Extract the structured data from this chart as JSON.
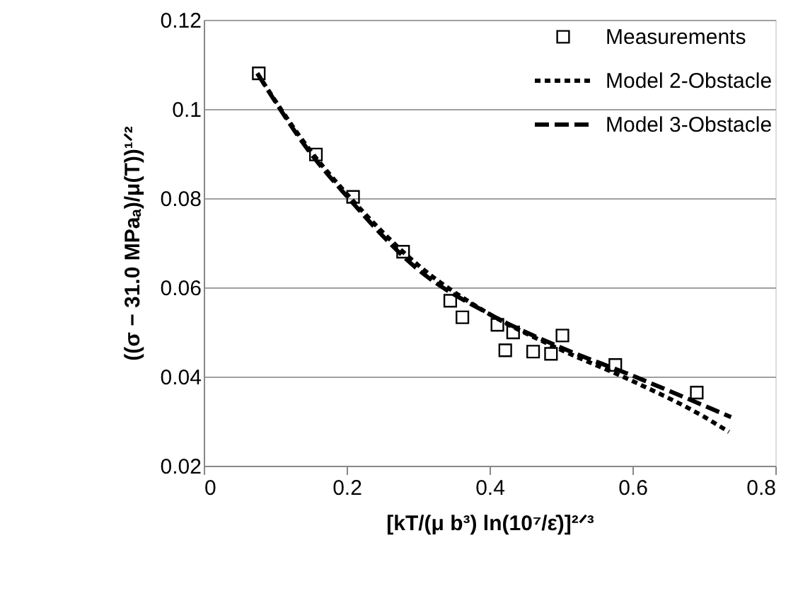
{
  "chart_data": {
    "type": "scatter",
    "xlabel": "[kT/(μ b³) ln(10⁷/ε̇)]²ᐟ³",
    "ylabel": "((σ − 31.0 MPaₐ)/μ(T))¹ᐟ²",
    "xlim": [
      0,
      0.8
    ],
    "xticks": [
      {
        "value": 0,
        "label": "0"
      },
      0.2,
      0.4,
      0.6,
      0.8
    ],
    "ylim": [
      0.02,
      0.12
    ],
    "yticks": [
      0.02,
      0.04,
      0.06,
      0.08,
      {
        "value": 0.1,
        "label": "0.1"
      },
      0.12
    ],
    "grid": "y",
    "legend": "top right",
    "series": [
      {
        "name": "Measurements",
        "marker": "square",
        "color": "#000000",
        "x": [
          0.077,
          0.157,
          0.209,
          0.279,
          0.345,
          0.362,
          0.411,
          0.433,
          0.422,
          0.461,
          0.486,
          0.502,
          0.576,
          0.69
        ],
        "values": [
          0.108,
          0.0898,
          0.0803,
          0.068,
          0.057,
          0.0533,
          0.0516,
          0.0499,
          0.0459,
          0.0456,
          0.0451,
          0.0492,
          0.0426,
          0.0364
        ]
      },
      {
        "name": "Model 2-Obstacle",
        "type": "line",
        "line_style": "dotted",
        "color": "#000000",
        "x": [
          0.075,
          0.15,
          0.2,
          0.3,
          0.4,
          0.5,
          0.6,
          0.7,
          0.735
        ],
        "values": [
          0.108,
          0.0905,
          0.081,
          0.065,
          0.054,
          0.046,
          0.039,
          0.031,
          0.0276
        ]
      },
      {
        "name": "Model 3-Obstacle",
        "type": "line",
        "line_style": "dashed",
        "color": "#000000",
        "x": [
          0.075,
          0.15,
          0.2,
          0.3,
          0.4,
          0.5,
          0.6,
          0.7,
          0.738
        ],
        "values": [
          0.108,
          0.09,
          0.0805,
          0.064,
          0.054,
          0.0465,
          0.0402,
          0.0335,
          0.0309
        ]
      }
    ]
  }
}
